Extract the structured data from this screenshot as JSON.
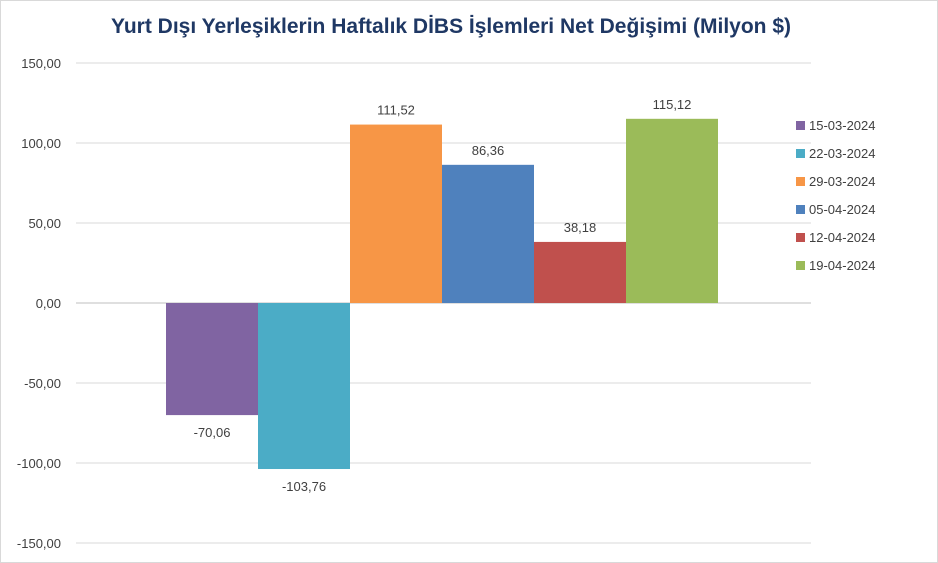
{
  "chart_data": {
    "type": "bar",
    "title": "Yurt Dışı Yerleşiklerin Haftalık DİBS İşlemleri Net Değişimi (Milyon $)",
    "xlabel": "",
    "ylabel": "",
    "ylim": [
      -150,
      150
    ],
    "yticks": [
      150,
      100,
      50,
      0,
      -50,
      -100,
      -150
    ],
    "ytick_labels": [
      "150,00",
      "100,00",
      "50,00",
      "0,00",
      "-50,00",
      "-100,00",
      "-150,00"
    ],
    "grid": true,
    "legend_position": "right",
    "series": [
      {
        "name": "15-03-2024",
        "value": -70.06,
        "label": "-70,06",
        "color": "#8064a2"
      },
      {
        "name": "22-03-2024",
        "value": -103.76,
        "label": "-103,76",
        "color": "#4bacc6"
      },
      {
        "name": "29-03-2024",
        "value": 111.52,
        "label": "111,52",
        "color": "#f79646"
      },
      {
        "name": "05-04-2024",
        "value": 86.36,
        "label": "86,36",
        "color": "#4f81bd"
      },
      {
        "name": "12-04-2024",
        "value": 38.18,
        "label": "38,18",
        "color": "#c0504d"
      },
      {
        "name": "19-04-2024",
        "value": 115.12,
        "label": "115,12",
        "color": "#9bbb59"
      }
    ]
  }
}
